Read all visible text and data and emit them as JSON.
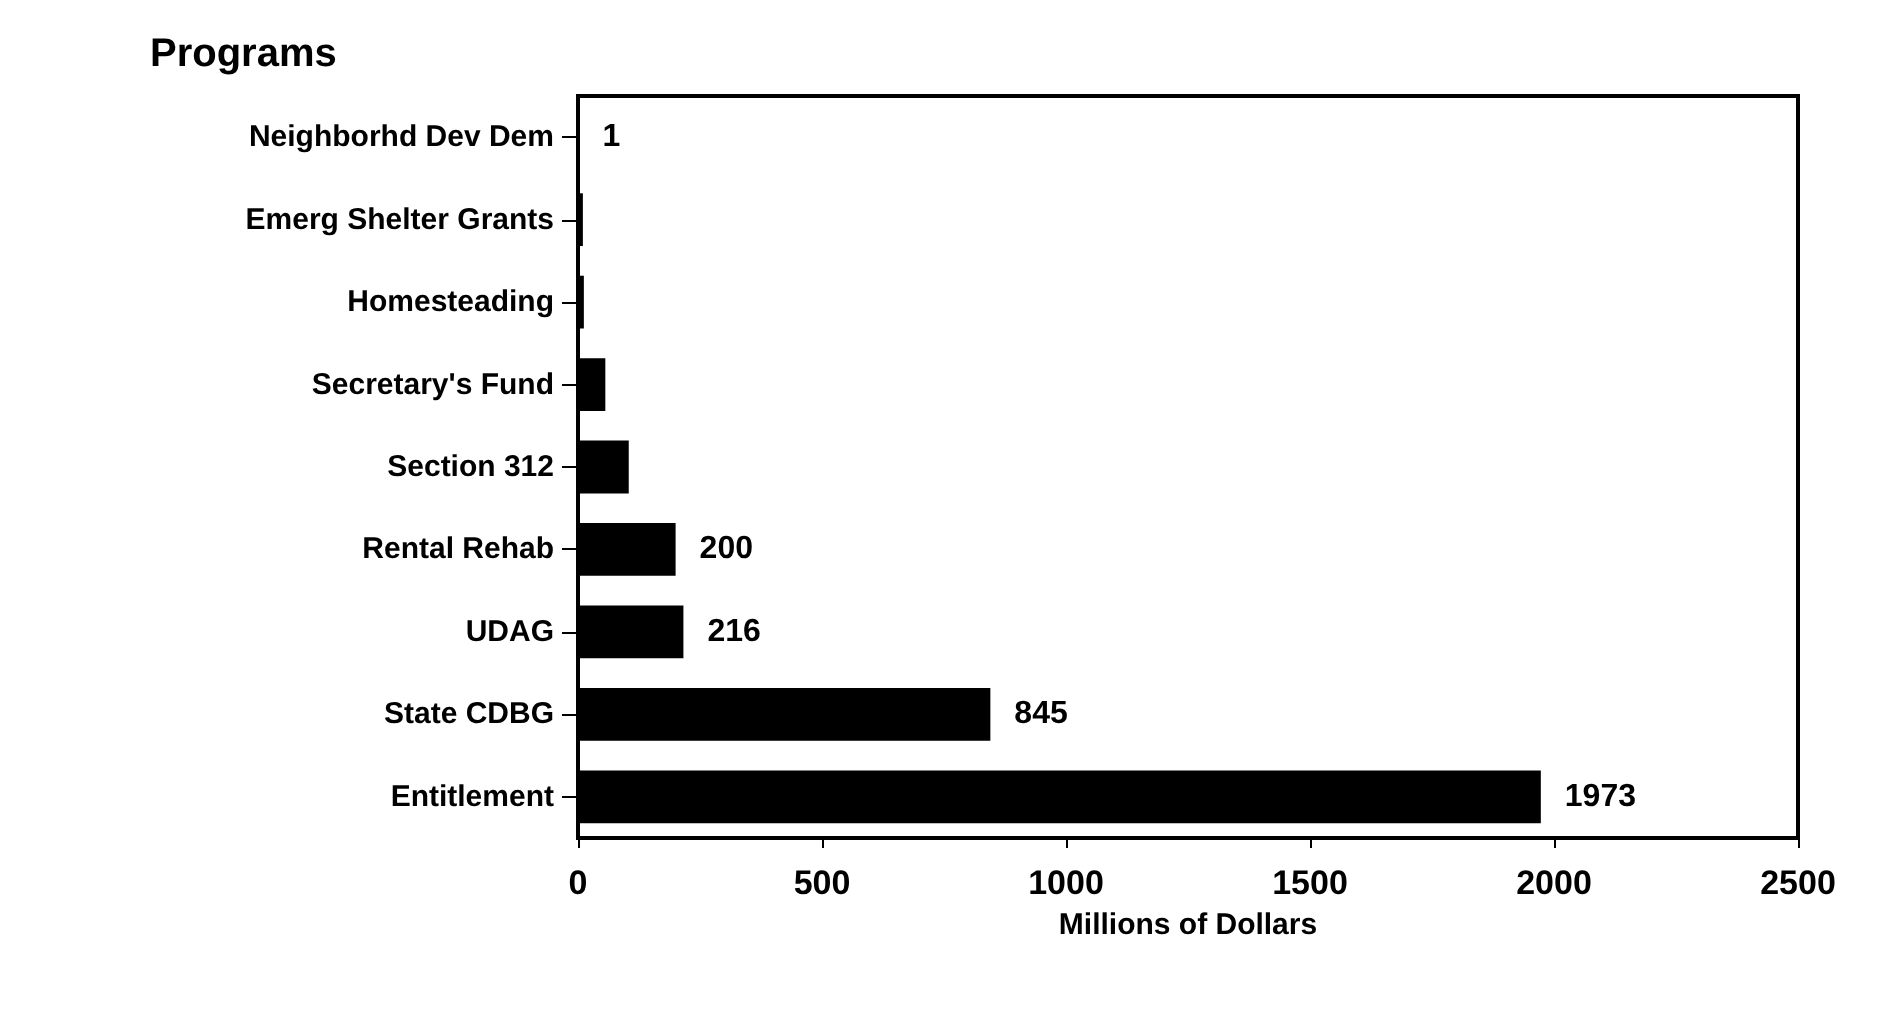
{
  "chart_data": {
    "type": "bar",
    "orientation": "horizontal",
    "title": "Programs",
    "xlabel": "Millions of Dollars",
    "categories": [
      "Neighborhd Dev Dem",
      "Emerg Shelter Grants",
      "Homesteading",
      "Secretary's Fund",
      "Section 312",
      "Rental Rehab",
      "UDAG",
      "State CDBG",
      "Entitlement"
    ],
    "values": [
      1,
      10,
      12,
      56,
      104,
      200,
      216,
      845,
      1973
    ],
    "value_labels": [
      "1",
      null,
      null,
      null,
      null,
      "200",
      "216",
      "845",
      "1973"
    ],
    "color": "#000000",
    "xlim": [
      0,
      2500
    ],
    "xticks": [
      0,
      500,
      1000,
      1500,
      2000,
      2500
    ],
    "grid": false
  }
}
